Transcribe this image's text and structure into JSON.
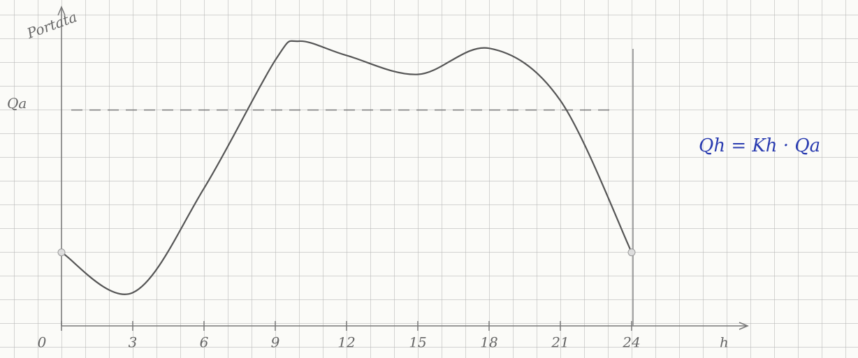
{
  "chart_data": {
    "type": "line",
    "y_label": "Portata",
    "x_label": "h",
    "x": [
      0,
      3,
      6,
      9,
      10,
      12,
      15,
      18,
      21,
      24
    ],
    "series": [
      {
        "name": "Portata",
        "color": "#555555",
        "values": [
          3.1,
          1.4,
          5.8,
          11.2,
          12.0,
          11.4,
          10.6,
          11.7,
          9.5,
          3.1
        ]
      }
    ],
    "xlim": [
      0,
      29
    ],
    "xticks": [
      0,
      3,
      6,
      9,
      12,
      15,
      18,
      21,
      24
    ],
    "ylim": [
      0,
      13.5
    ],
    "reference_line": {
      "label": "Qa",
      "value": 9.1
    },
    "annotations": [
      "Qh = Kh · Qa"
    ]
  }
}
